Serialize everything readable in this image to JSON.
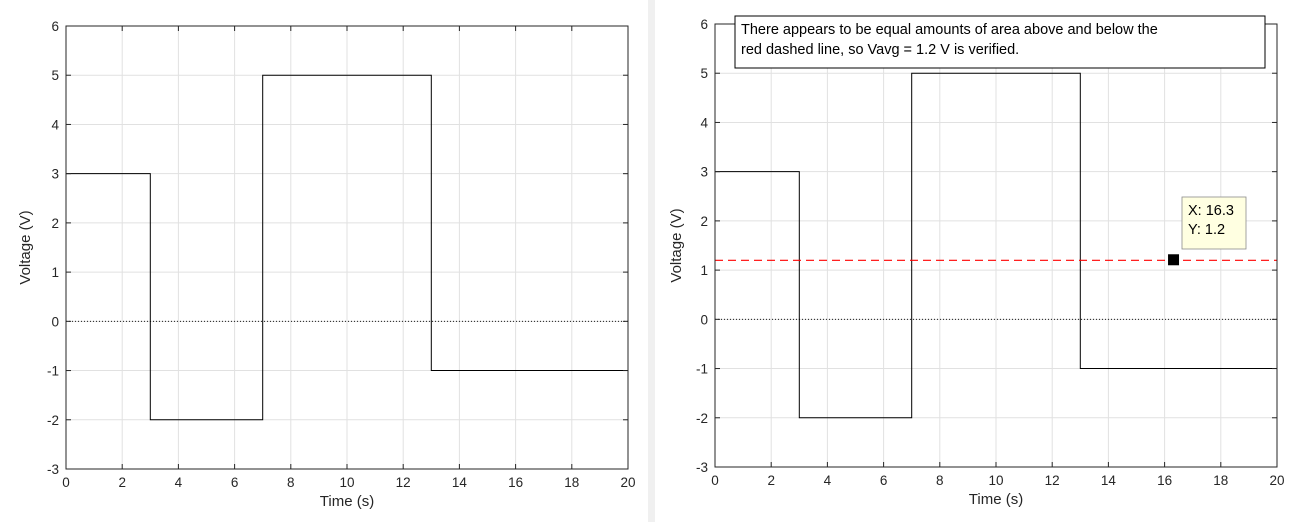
{
  "colors": {
    "grid": "#e1e1e1",
    "axis": "#262626",
    "signal": "#000000",
    "avg_line": "#ff0000",
    "zero_line": "#000000",
    "tip_bg": "#ffffe1",
    "annot_border": "#000000"
  },
  "chart_data": [
    {
      "type": "line",
      "title": "",
      "xlabel": "Time (s)",
      "ylabel": "Voltage (V)",
      "xlim": [
        0,
        20
      ],
      "ylim": [
        -3,
        6
      ],
      "xticks": [
        0,
        2,
        4,
        6,
        8,
        10,
        12,
        14,
        16,
        18,
        20
      ],
      "yticks": [
        -3,
        -2,
        -1,
        0,
        1,
        2,
        3,
        4,
        5,
        6
      ],
      "grid": true,
      "series": [
        {
          "x": [
            0,
            3,
            3,
            7,
            7,
            13,
            13,
            20
          ],
          "y": [
            3,
            3,
            -2,
            -2,
            5,
            5,
            -1,
            -1
          ],
          "color": "#000000",
          "style": "solid"
        },
        {
          "x": [
            0,
            20
          ],
          "y": [
            0,
            0
          ],
          "color": "#000000",
          "style": "dotted"
        }
      ]
    },
    {
      "type": "line",
      "title": "",
      "xlabel": "Time (s)",
      "ylabel": "Voltage (V)",
      "xlim": [
        0,
        20
      ],
      "ylim": [
        -3,
        6
      ],
      "xticks": [
        0,
        2,
        4,
        6,
        8,
        10,
        12,
        14,
        16,
        18,
        20
      ],
      "yticks": [
        -3,
        -2,
        -1,
        0,
        1,
        2,
        3,
        4,
        5,
        6
      ],
      "grid": true,
      "series": [
        {
          "x": [
            0,
            3,
            3,
            7,
            7,
            13,
            13,
            20
          ],
          "y": [
            3,
            3,
            -2,
            -2,
            5,
            5,
            -1,
            -1
          ],
          "color": "#000000",
          "style": "solid"
        },
        {
          "x": [
            0,
            20
          ],
          "y": [
            0,
            0
          ],
          "color": "#000000",
          "style": "dotted"
        },
        {
          "x": [
            0,
            20
          ],
          "y": [
            1.2,
            1.2
          ],
          "color": "#ff0000",
          "style": "dashed"
        }
      ],
      "annotation": {
        "lines": [
          "There appears to be equal amounts of area above and below the",
          "red dashed line, so Vavg = 1.2 V is verified."
        ]
      },
      "datatip": {
        "x": 16.3,
        "y": 1.2,
        "lines": [
          "X: 16.3",
          "Y: 1.2"
        ]
      }
    }
  ]
}
